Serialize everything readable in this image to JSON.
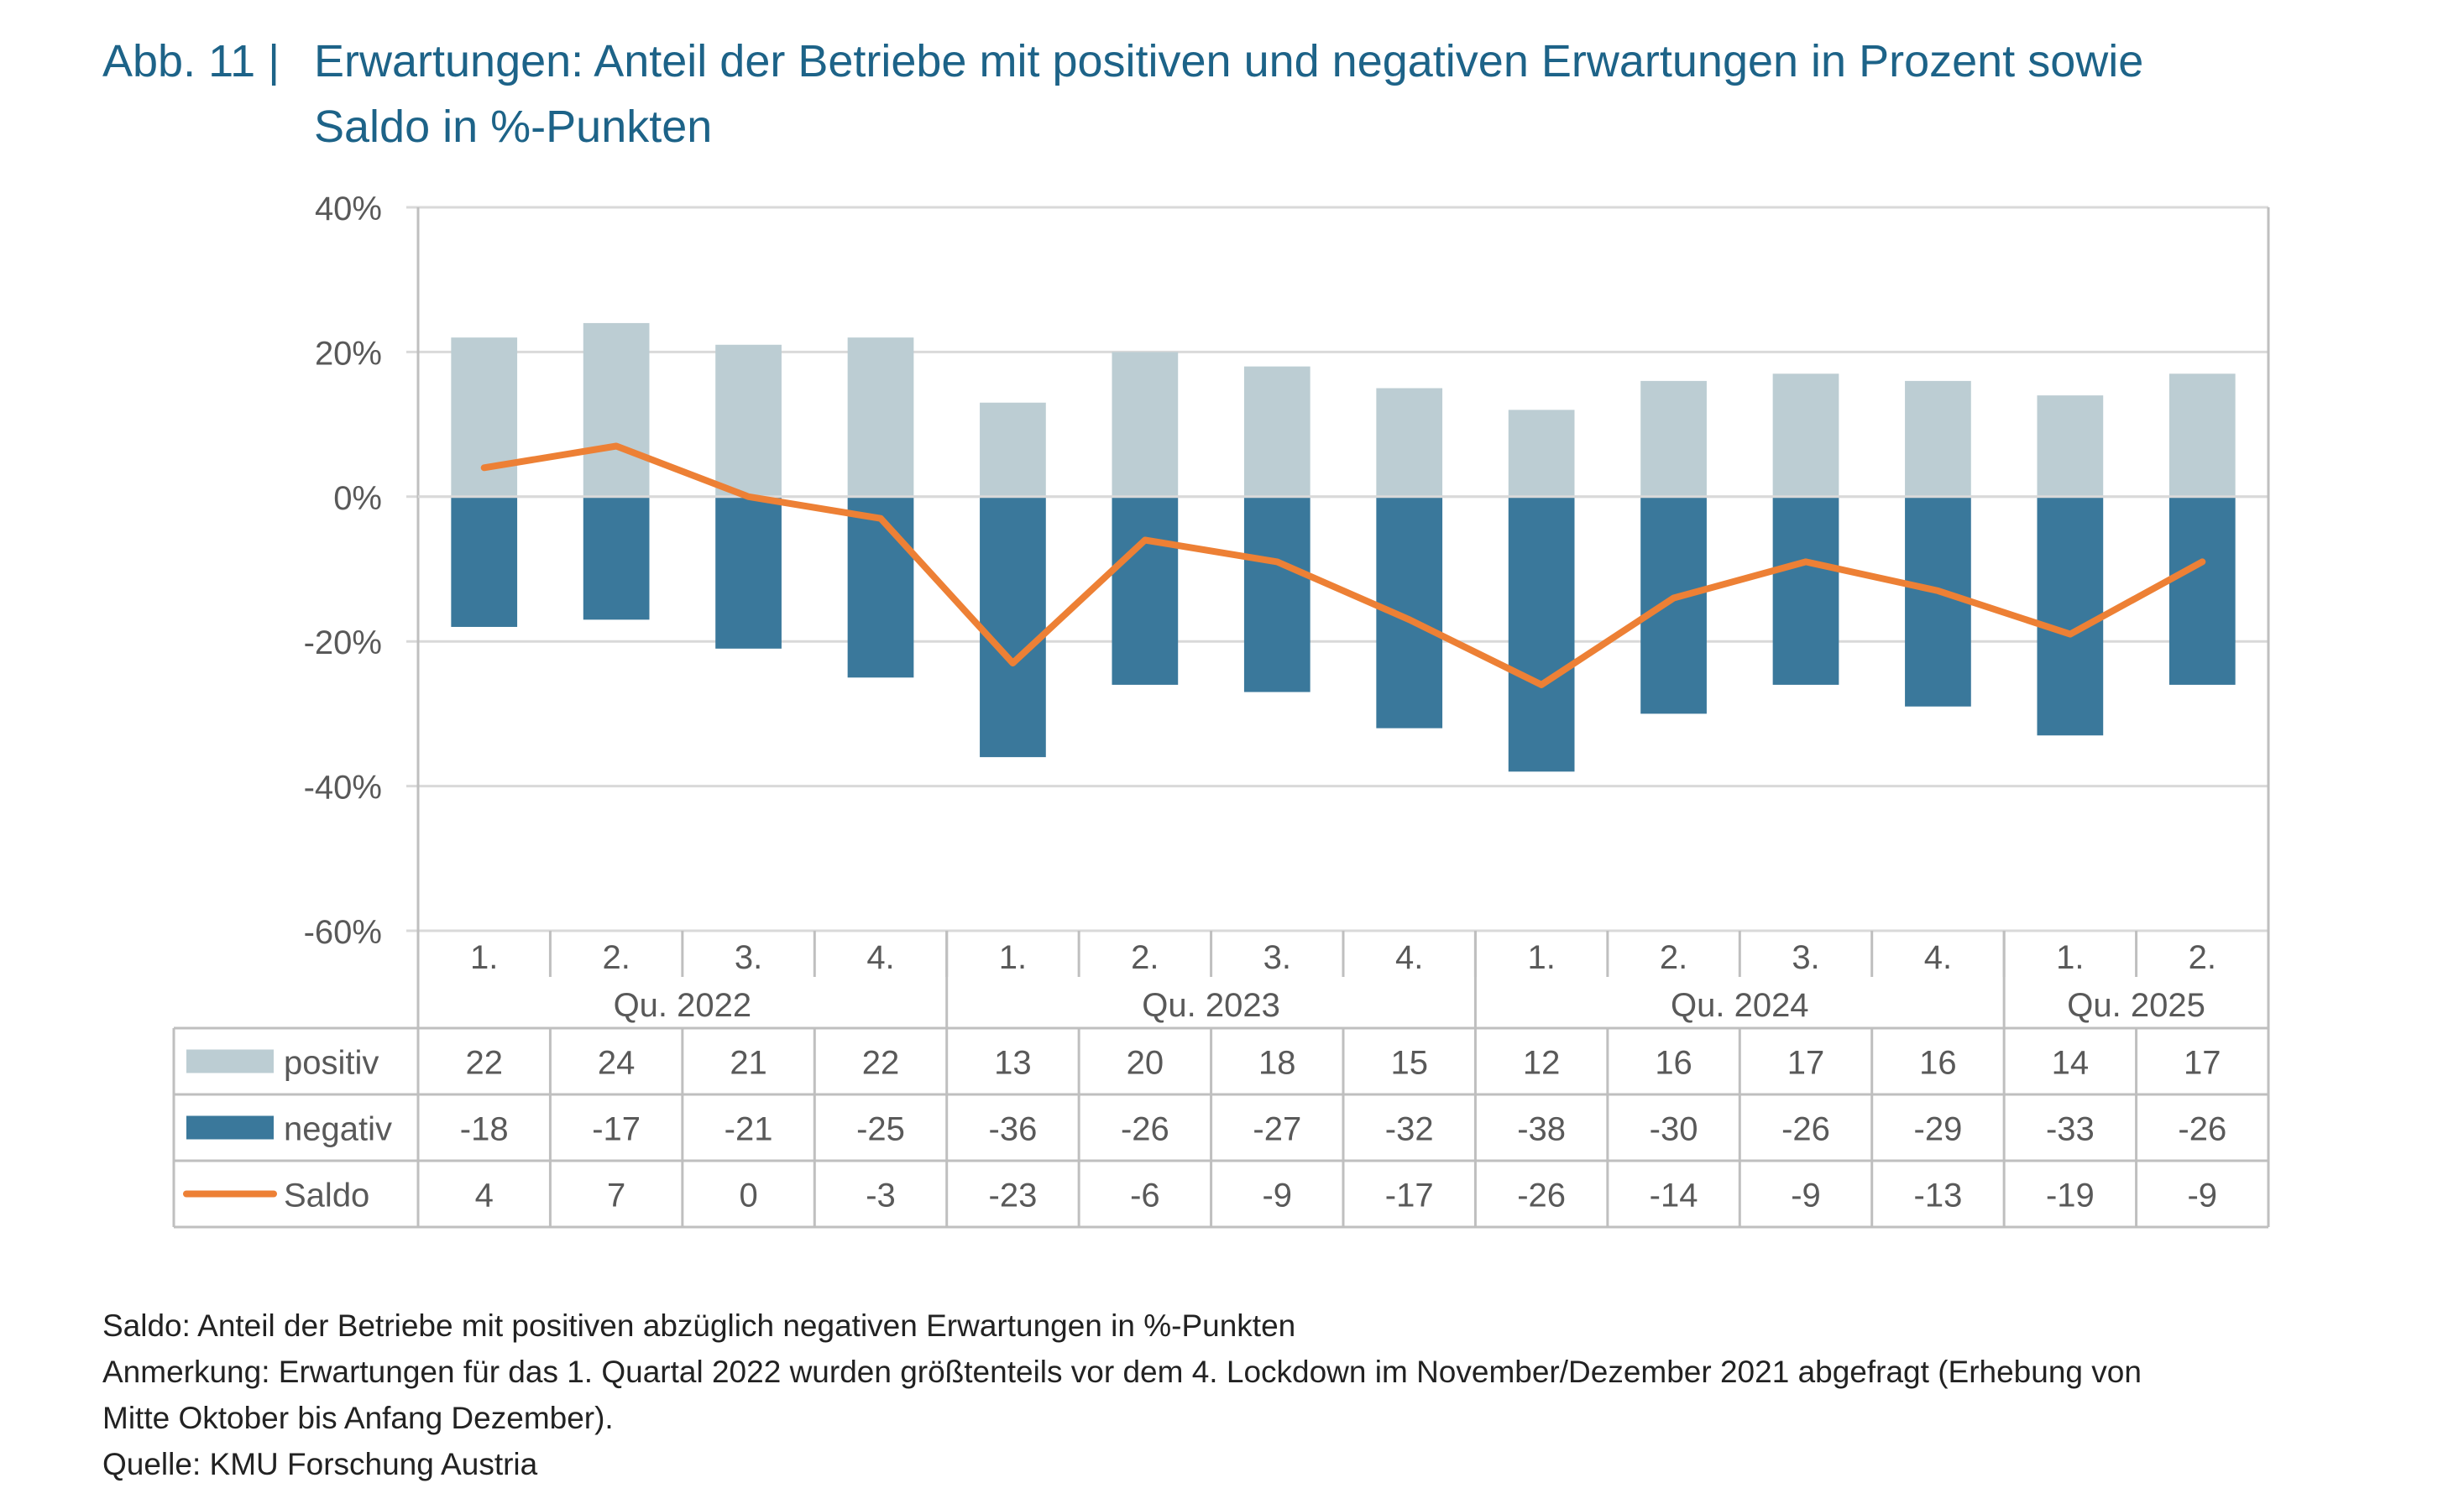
{
  "figure": {
    "label": "Abb. 11 |",
    "title_line1": "Erwartungen: Anteil der Betriebe mit positiven und negativen Erwartungen in Prozent sowie",
    "title_line2": "Saldo in %-Punkten"
  },
  "chart_data": {
    "type": "bar",
    "ylim": [
      -60,
      40
    ],
    "yticks": [
      "40%",
      "20%",
      "0%",
      "-20%",
      "-40%",
      "-60%"
    ],
    "ytick_values": [
      40,
      20,
      0,
      -20,
      -40,
      -60
    ],
    "grid": true,
    "categories": [
      "1.",
      "2.",
      "3.",
      "4.",
      "1.",
      "2.",
      "3.",
      "4.",
      "1.",
      "2.",
      "3.",
      "4.",
      "1.",
      "2."
    ],
    "groups": [
      {
        "label": "Qu. 2022",
        "span": 4
      },
      {
        "label": "Qu. 2023",
        "span": 4
      },
      {
        "label": "Qu. 2024",
        "span": 4
      },
      {
        "label": "Qu. 2025",
        "span": 2
      }
    ],
    "series": [
      {
        "name": "positiv",
        "kind": "bar",
        "color": "#bccdd3",
        "values": [
          22,
          24,
          21,
          22,
          13,
          20,
          18,
          15,
          12,
          16,
          17,
          16,
          14,
          17
        ]
      },
      {
        "name": "negativ",
        "kind": "bar",
        "color": "#3a789b",
        "values": [
          -18,
          -17,
          -21,
          -25,
          -36,
          -26,
          -27,
          -32,
          -38,
          -30,
          -26,
          -29,
          -33,
          -26
        ]
      },
      {
        "name": "Saldo",
        "kind": "line",
        "color": "#ed8035",
        "values": [
          4,
          7,
          0,
          -3,
          -23,
          -6,
          -9,
          -17,
          -26,
          -14,
          -9,
          -13,
          -19,
          -9
        ]
      }
    ],
    "data_table": true
  },
  "notes": {
    "saldo_def": "Saldo: Anteil der Betriebe mit positiven abzüglich negativen Erwartungen in %-Punkten",
    "remark_line1": "Anmerkung: Erwartungen für das 1. Quartal 2022 wurden größtenteils vor dem 4. Lockdown im November/Dezember 2021 abgefragt (Erhebung von",
    "remark_line2": "Mitte Oktober bis Anfang Dezember).",
    "source": "Quelle: KMU Forschung Austria"
  },
  "colors": {
    "title": "#1d6388",
    "grid": "#d9d9d9",
    "axis": "#bfbfbf",
    "text": "#595959"
  }
}
